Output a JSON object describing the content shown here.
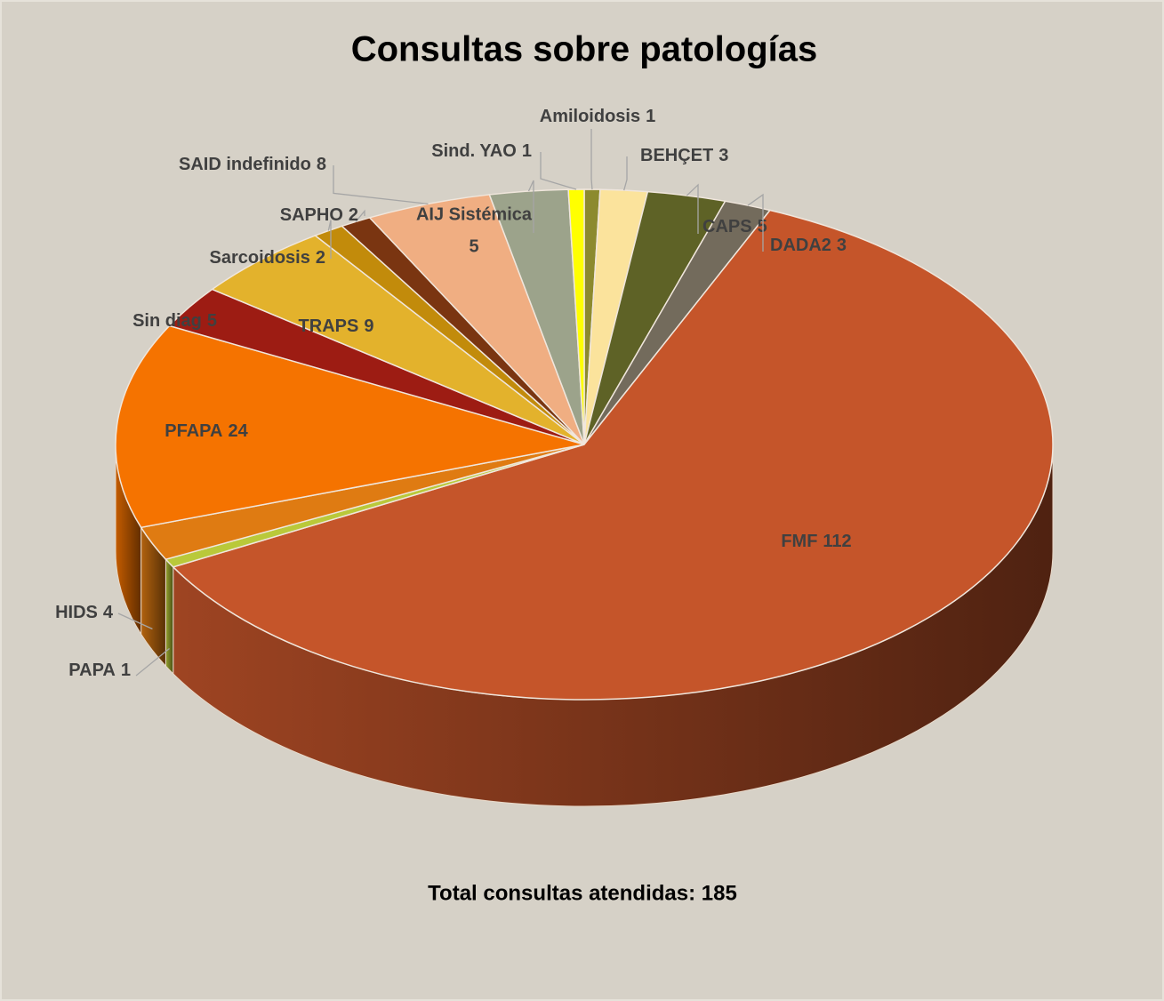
{
  "chart_data": {
    "type": "pie",
    "title": "Consultas sobre patologías",
    "note": "Total consultas atendidas: 185",
    "categories": [
      "Amiloidosis",
      "BEHÇET",
      "CAPS",
      "DADA2",
      "FMF",
      "PAPA",
      "HIDS",
      "PFAPA",
      "Sin diag",
      "TRAPS",
      "Sarcoidosis",
      "SAPHO",
      "SAID indefinido",
      "AIJ Sistémica",
      "Sind. YAO"
    ],
    "values": [
      1,
      3,
      5,
      3,
      112,
      1,
      4,
      24,
      5,
      9,
      2,
      2,
      8,
      5,
      1
    ],
    "colors": [
      "#8c8a2e",
      "#fbe39c",
      "#5e6226",
      "#736b5c",
      "#c5552a",
      "#b9c93a",
      "#df7b12",
      "#f57300",
      "#9d1c13",
      "#e3b22c",
      "#c28b0b",
      "#7a3511",
      "#f0ae82",
      "#9ca38b",
      "#ffff00"
    ]
  }
}
